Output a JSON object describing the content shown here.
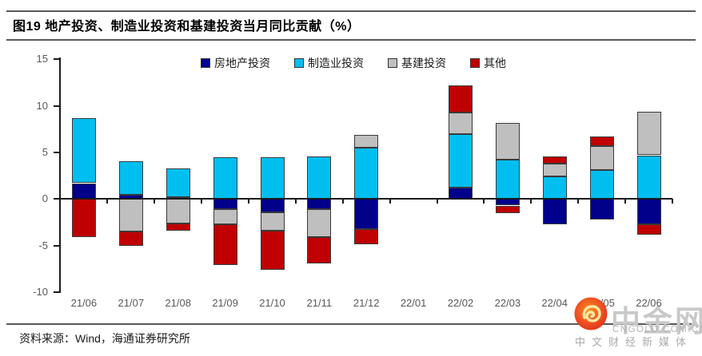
{
  "page": {
    "title": "图19 地产投资、制造业投资和基建投资当月同比贡献（%）",
    "source": "资料来源：Wind，海通证券研究所"
  },
  "watermark": {
    "brand": "中金网",
    "domain": "CNGOLD.COM.CN",
    "tagline": "中文财经新媒体",
    "logo_color": "#EB4A1D",
    "logo_inner_color": "#FBB03B",
    "text_color": "#C9C9C9"
  },
  "chart_data": {
    "type": "bar",
    "stacked": true,
    "title": "地产投资、制造业投资和基建投资当月同比贡献（%）",
    "xlabel": "",
    "ylabel": "%",
    "ylim": [
      -10,
      15
    ],
    "yticks": [
      15,
      10,
      5,
      0,
      -5,
      -10
    ],
    "grid": false,
    "legend_position": "top",
    "axis_color": "#1a1a1a",
    "tick_label_color": "#595959",
    "categories": [
      "21/06",
      "21/07",
      "21/08",
      "21/09",
      "21/10",
      "21/11",
      "21/12",
      "22/01",
      "22/02",
      "22/03",
      "22/04",
      "22/05",
      "22/06"
    ],
    "series": [
      {
        "name": "房地产投资",
        "color": "#00008B",
        "values": [
          1.7,
          0.5,
          0.2,
          -1.1,
          -1.4,
          -1.1,
          -3.2,
          0,
          1.2,
          -0.7,
          -2.7,
          -2.2,
          -2.7
        ]
      },
      {
        "name": "制造业投资",
        "color": "#00BFF0",
        "values": [
          7.0,
          3.6,
          3.1,
          4.5,
          4.5,
          4.6,
          5.5,
          0,
          5.8,
          4.2,
          2.4,
          3.1,
          4.7
        ]
      },
      {
        "name": "基建投资",
        "color": "#BFBFBF",
        "values": [
          0,
          -3.5,
          -2.6,
          -1.6,
          -2.0,
          -3.0,
          1.4,
          0,
          2.3,
          4.0,
          1.4,
          2.6,
          4.7
        ]
      },
      {
        "name": "其他",
        "color": "#C00000",
        "values": [
          -4.1,
          -1.5,
          -0.8,
          -4.4,
          -4.2,
          -2.8,
          -1.7,
          0,
          2.9,
          -0.8,
          0.8,
          1.0,
          -1.1
        ]
      }
    ]
  }
}
